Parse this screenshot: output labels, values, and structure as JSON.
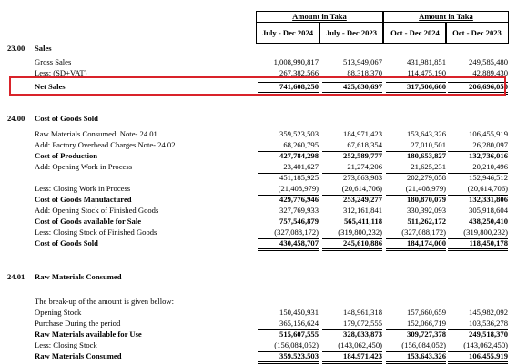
{
  "header": {
    "groups": [
      "Amount in Taka",
      "Amount in Taka"
    ],
    "columns": [
      "July - Dec 2024",
      "July - Dec 2023",
      "Oct - Dec 2024",
      "Oct - Dec 2023"
    ]
  },
  "sections": [
    {
      "number": "23.00",
      "title": "Sales",
      "rows": [
        {
          "label": "Gross Sales",
          "values": [
            "1,008,990,817",
            "513,949,067",
            "431,981,851",
            "249,585,480"
          ]
        },
        {
          "label": "Less: (SD+VAT)",
          "values": [
            "267,382,566",
            "88,318,370",
            "114,475,190",
            "42,889,430"
          ]
        },
        {
          "label": "Net Sales",
          "values": [
            "741,608,250",
            "425,630,697",
            "317,506,660",
            "206,696,050"
          ],
          "bold": true,
          "total": true,
          "double": true,
          "highlight": true
        }
      ]
    },
    {
      "number": "24.00",
      "title": "Cost of Goods Sold",
      "rows": [
        {
          "label": "Raw Materials Consumed: Note- 24.01",
          "values": [
            "359,523,503",
            "184,971,423",
            "153,643,326",
            "106,455,919"
          ]
        },
        {
          "label": "Add: Factory Overhead Charges Note- 24.02",
          "values": [
            "68,260,795",
            "67,618,354",
            "27,010,501",
            "26,280,097"
          ]
        },
        {
          "label": "Cost of Production",
          "values": [
            "427,784,298",
            "252,589,777",
            "180,653,827",
            "132,736,016"
          ],
          "bold": true,
          "total": true
        },
        {
          "label": "Add: Opening  Work in Process",
          "values": [
            "23,401,627",
            "21,274,206",
            "21,625,231",
            "20,210,496"
          ]
        },
        {
          "values": [
            "451,185,925",
            "273,863,983",
            "202,279,058",
            "152,946,512"
          ],
          "total": true
        },
        {
          "label": "Less: Closing Work in Process",
          "values": [
            "(21,408,979)",
            "(20,614,706)",
            "(21,408,979)",
            "(20,614,706)"
          ]
        },
        {
          "label": "Cost of Goods Manufactured",
          "values": [
            "429,776,946",
            "253,249,277",
            "180,870,079",
            "132,331,806"
          ],
          "bold": true,
          "total": true
        },
        {
          "label": "Add: Opening Stock of Finished Goods",
          "values": [
            "327,769,933",
            "312,161,841",
            "330,392,093",
            "305,918,604"
          ]
        },
        {
          "label": "Cost of Goods available for Sale",
          "values": [
            "757,546,879",
            "565,411,118",
            "511,262,172",
            "438,250,410"
          ],
          "bold": true,
          "total": true
        },
        {
          "label": "Less: Closing Stock of Finished Goods",
          "values": [
            "(327,088,172)",
            "(319,800,232)",
            "(327,088,172)",
            "(319,800,232)"
          ]
        },
        {
          "label": "Cost of Goods Sold",
          "values": [
            "430,458,707",
            "245,610,886",
            "184,174,000",
            "118,450,178"
          ],
          "bold": true,
          "total": true,
          "double": true
        }
      ]
    },
    {
      "number": "24.01",
      "title": "Raw Materials Consumed",
      "intro": "The break-up of the amount is given bellow:",
      "rows": [
        {
          "label": "Opening Stock",
          "values": [
            "150,450,931",
            "148,961,318",
            "157,660,659",
            "145,982,092"
          ]
        },
        {
          "label": "Purchase During the period",
          "values": [
            "365,156,624",
            "179,072,555",
            "152,066,719",
            "103,536,278"
          ]
        },
        {
          "label": "Raw Materials available for Use",
          "values": [
            "515,607,555",
            "328,033,873",
            "309,727,378",
            "249,518,370"
          ],
          "bold": true,
          "total": true
        },
        {
          "label": "Less: Closing Stock",
          "values": [
            "(156,084,052)",
            "(143,062,450)",
            "(156,084,052)",
            "(143,062,450)"
          ]
        },
        {
          "label": "Raw Materials Consumed",
          "values": [
            "359,523,503",
            "184,971,423",
            "153,643,326",
            "106,455,919"
          ],
          "bold": true,
          "total": true,
          "double": true
        }
      ]
    }
  ]
}
